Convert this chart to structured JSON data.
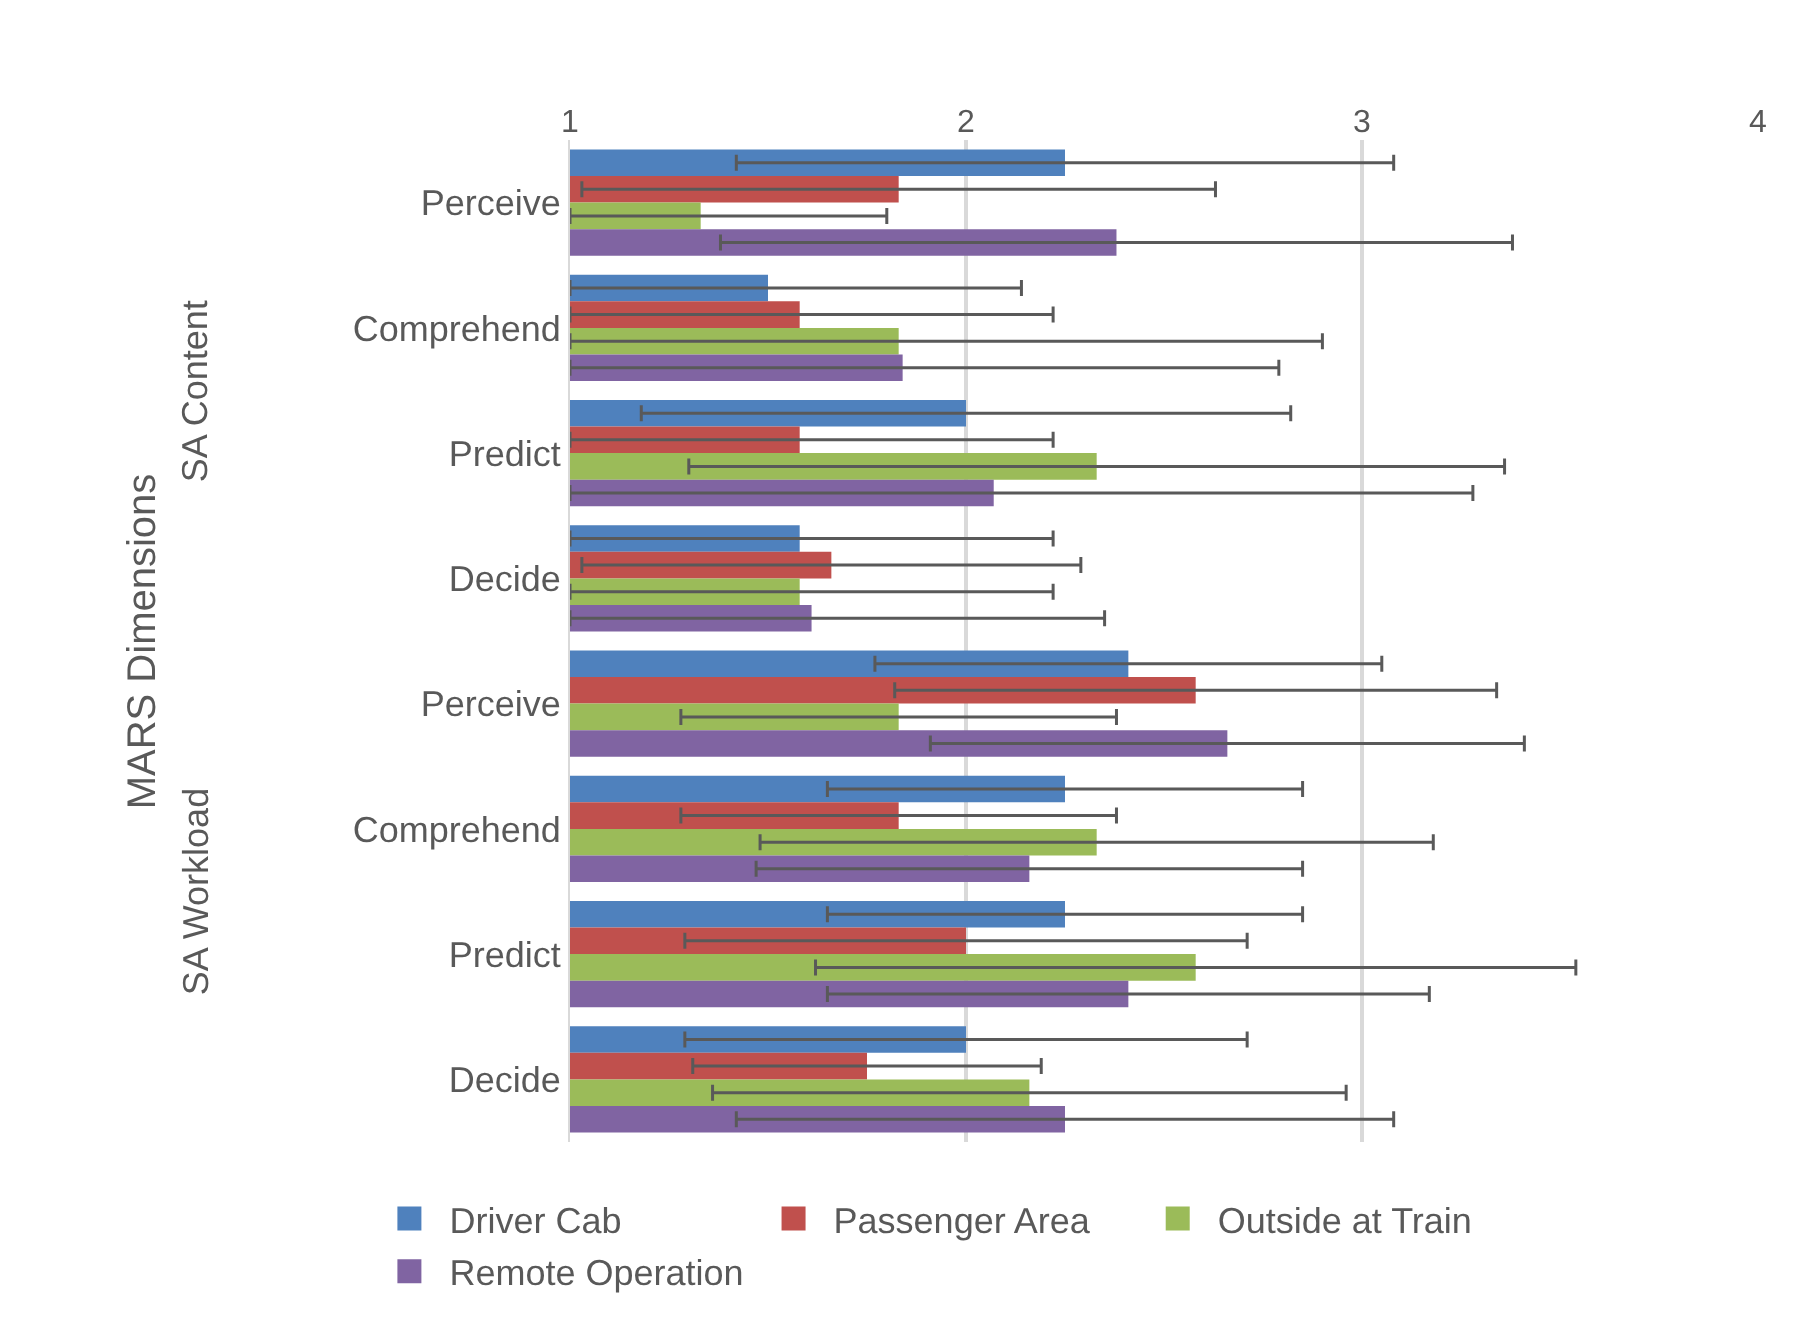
{
  "chart_data": {
    "type": "bar",
    "orientation": "horizontal",
    "ylabel": "MARS Dimensions",
    "annotations": [
      "SA Content",
      "SA Workload"
    ],
    "categories": [
      "Perceive",
      "Comprehend",
      "Predict",
      "Decide",
      "Perceive",
      "Comprehend",
      "Predict",
      "Decide"
    ],
    "xlim": [
      1,
      4
    ],
    "xticks": [
      1,
      2,
      3,
      4
    ],
    "grid": "x",
    "legend": "bottom",
    "series": [
      {
        "name": "Driver Cab",
        "color": "#4f81bd",
        "values": [
          2.25,
          1.5,
          2.0,
          1.58,
          2.41,
          2.25,
          2.25,
          2.0
        ],
        "errors": [
          0.83,
          [
            1,
            2.14
          ],
          0.82,
          [
            1,
            2.22
          ],
          0.64,
          0.6,
          0.6,
          0.71
        ]
      },
      {
        "name": "Passenger Area",
        "color": "#c0504d",
        "values": [
          1.83,
          1.58,
          1.58,
          1.66,
          2.58,
          1.83,
          2.0,
          1.75
        ],
        "errors": [
          0.8,
          [
            1,
            2.22
          ],
          [
            1,
            2.22
          ],
          0.63,
          0.76,
          0.55,
          0.71,
          0.44
        ]
      },
      {
        "name": "Outside at Train",
        "color": "#9bbb59",
        "values": [
          1.33,
          1.83,
          2.33,
          1.58,
          1.83,
          2.33,
          2.58,
          2.16
        ],
        "errors": [
          [
            1,
            1.8
          ],
          [
            1,
            2.9
          ],
          1.03,
          [
            1,
            2.22
          ],
          0.55,
          0.85,
          0.96,
          0.8
        ]
      },
      {
        "name": "Remote Operation",
        "color": "#8064a2",
        "values": [
          2.38,
          1.84,
          2.07,
          1.61,
          2.66,
          2.16,
          2.41,
          2.25
        ],
        "errors": [
          1.0,
          [
            1,
            2.79
          ],
          [
            1,
            3.28
          ],
          [
            1,
            2.35
          ],
          0.75,
          0.69,
          0.76,
          0.83
        ]
      }
    ]
  }
}
